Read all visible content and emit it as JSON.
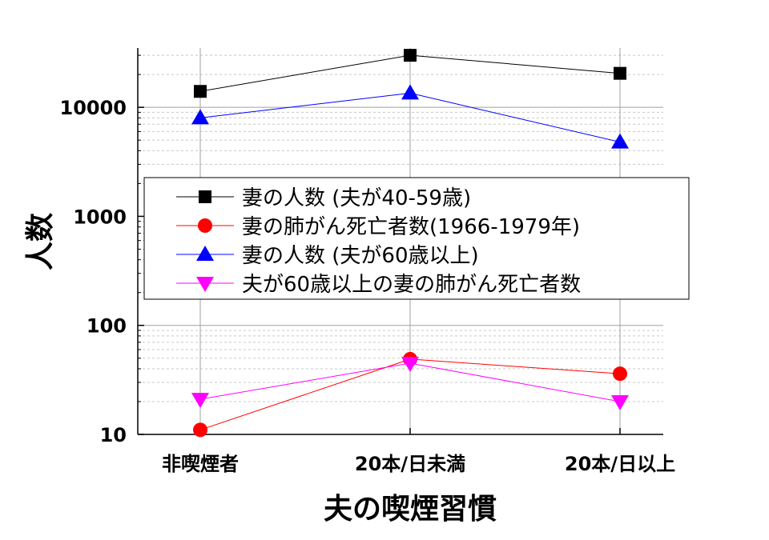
{
  "chart_data": {
    "type": "line",
    "xlabel": "夫の喫煙習慣",
    "ylabel": "人数",
    "categories": [
      "非喫煙者",
      "20本/日未満",
      "20本/日以上"
    ],
    "yscale": "log",
    "ylim": [
      10,
      35000
    ],
    "yticks": [
      10,
      100,
      1000,
      10000
    ],
    "ytick_labels": [
      "10",
      "100",
      "1000",
      "10000"
    ],
    "grid": true,
    "legend_position": "center-left",
    "series": [
      {
        "name": "妻の人数 (夫が40-59歳)",
        "values": [
          14000,
          30000,
          20500
        ],
        "color": "#000000",
        "marker": "square"
      },
      {
        "name": "妻の肺がん死亡者数(1966-1979年)",
        "values": [
          11,
          49,
          36
        ],
        "color": "#ff0000",
        "marker": "circle"
      },
      {
        "name": "妻の人数 (夫が60歳以上)",
        "values": [
          8000,
          13500,
          4800
        ],
        "color": "#0000ff",
        "marker": "triangle-up"
      },
      {
        "name": "夫が60歳以上の妻の肺がん死亡者数",
        "values": [
          21,
          45,
          20
        ],
        "color": "#ff00ff",
        "marker": "triangle-down"
      }
    ]
  }
}
